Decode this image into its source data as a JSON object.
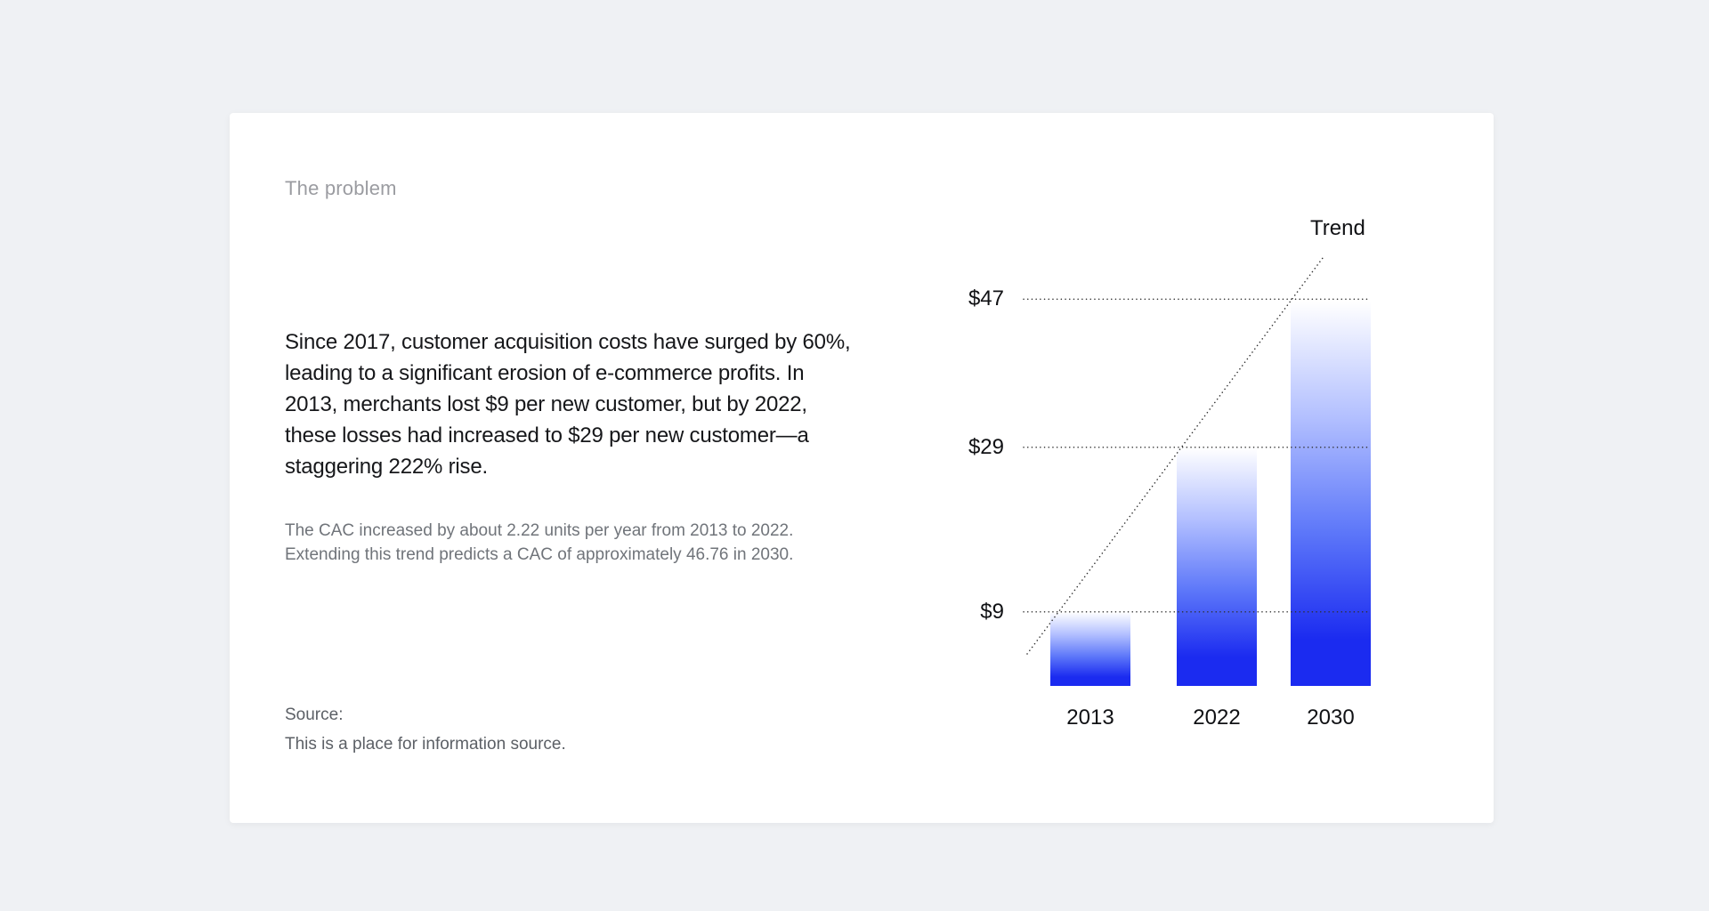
{
  "page": {
    "background": "#eff1f4",
    "card_background": "#ffffff"
  },
  "slide": {
    "eyebrow": "The problem",
    "body": "Since 2017, customer acquisition costs have surged by 60%, leading to a significant erosion of e-commerce profits. In 2013, merchants lost $9 per new customer, but by 2022, these losses had increased to $29 per new customer—a staggering 222% rise.",
    "note": "The CAC increased by about 2.22 units per year from 2013 to 2022. Extending this trend predicts a CAC of approximately 46.76 in 2030.",
    "source_label": "Source:",
    "source_text": "This is a place for information source."
  },
  "chart_data": {
    "type": "bar",
    "title": "",
    "xlabel": "",
    "ylabel": "",
    "categories": [
      "2013",
      "2022",
      "2030"
    ],
    "values": [
      9,
      29,
      46.76
    ],
    "yticks": [
      {
        "value": 9,
        "label": "$9"
      },
      {
        "value": 29,
        "label": "$29"
      },
      {
        "value": 47,
        "label": "$47"
      }
    ],
    "ylim": [
      0,
      50
    ],
    "grid_style": "dotted",
    "trend_label": "Trend",
    "trend_line": true,
    "colors": {
      "bar_gradient": [
        "#ffffff",
        "#b3c0ff",
        "#5d77f9",
        "#1b2bf0"
      ],
      "grid_line": "#2f2f2f",
      "trend_line": "#2f2f2f",
      "axis_text": "#101114"
    }
  }
}
